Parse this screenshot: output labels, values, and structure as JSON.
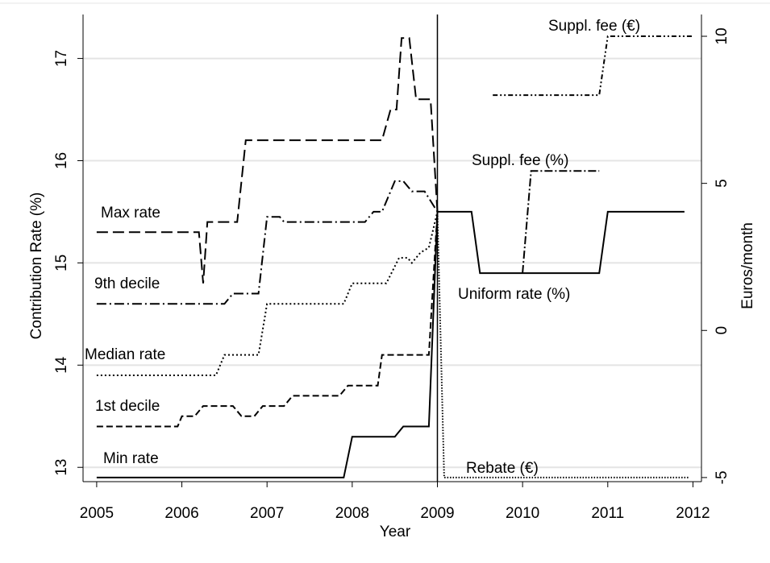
{
  "chart_data": {
    "type": "line",
    "xlabel": "Year",
    "ylabel": "Contribution Rate (%)",
    "y2label": "Euros/month",
    "xlim": [
      2004.84,
      2012.1
    ],
    "xticks": [
      2005,
      2006,
      2007,
      2008,
      2009,
      2010,
      2011,
      2012
    ],
    "ylim": [
      12.86,
      17.43
    ],
    "yticks": [
      13,
      14,
      15,
      16,
      17
    ],
    "y2lim": [
      -5.14,
      10.74
    ],
    "y2ticks": [
      -5,
      0,
      5,
      10
    ],
    "grid": true,
    "vline": 2009,
    "series": [
      {
        "name": "Max rate",
        "color": "#000000",
        "dash": "14 6",
        "x": [
          2005,
          2006.2,
          2006.25,
          2006.3,
          2006.65,
          2006.75,
          2008.35,
          2008.45,
          2008.52,
          2008.58,
          2008.67,
          2008.75,
          2008.92,
          2009
        ],
        "values": [
          15.3,
          15.3,
          14.8,
          15.4,
          15.4,
          16.2,
          16.2,
          16.5,
          16.5,
          17.2,
          17.2,
          16.6,
          16.6,
          15.5
        ]
      },
      {
        "name": "9th decile",
        "color": "#000000",
        "dash": "12 4 2 4",
        "x": [
          2005,
          2006.5,
          2006.6,
          2006.9,
          2007.0,
          2007.15,
          2007.2,
          2008.15,
          2008.25,
          2008.35,
          2008.5,
          2008.6,
          2008.7,
          2008.85,
          2009
        ],
        "values": [
          14.6,
          14.6,
          14.7,
          14.7,
          15.45,
          15.45,
          15.4,
          15.4,
          15.5,
          15.5,
          15.8,
          15.8,
          15.7,
          15.7,
          15.5
        ]
      },
      {
        "name": "Median rate",
        "color": "#000000",
        "dash": "2 3",
        "x": [
          2005,
          2006.4,
          2006.5,
          2006.9,
          2007.0,
          2007.9,
          2008.0,
          2008.4,
          2008.55,
          2008.65,
          2008.7,
          2008.8,
          2008.9,
          2009
        ],
        "values": [
          13.9,
          13.9,
          14.1,
          14.1,
          14.6,
          14.6,
          14.8,
          14.8,
          15.05,
          15.05,
          15.0,
          15.1,
          15.15,
          15.5
        ]
      },
      {
        "name": "1st decile",
        "color": "#000000",
        "dash": "8 4",
        "x": [
          2005,
          2005.95,
          2006.0,
          2006.15,
          2006.25,
          2006.6,
          2006.7,
          2006.85,
          2006.95,
          2007.2,
          2007.3,
          2007.85,
          2007.95,
          2008.3,
          2008.35,
          2008.9,
          2009
        ],
        "values": [
          13.4,
          13.4,
          13.5,
          13.5,
          13.6,
          13.6,
          13.5,
          13.5,
          13.6,
          13.6,
          13.7,
          13.7,
          13.8,
          13.8,
          14.1,
          14.1,
          15.5
        ]
      },
      {
        "name": "Min rate",
        "color": "#000000",
        "dash": "",
        "x": [
          2005,
          2007.9,
          2008.0,
          2008.5,
          2008.6,
          2008.9,
          2009
        ],
        "values": [
          12.9,
          12.9,
          13.3,
          13.3,
          13.4,
          13.4,
          15.5
        ]
      },
      {
        "name": "Uniform rate (%)",
        "color": "#000000",
        "dash": "",
        "x": [
          2009,
          2009.4,
          2009.5,
          2010.9,
          2011.0,
          2011.9
        ],
        "values": [
          15.5,
          15.5,
          14.9,
          14.9,
          15.5,
          15.5
        ]
      },
      {
        "name": "Suppl. fee (%)",
        "color": "#000000",
        "dash": "10 3 2 3",
        "x": [
          2010.0,
          2010.1,
          2010.9
        ],
        "values": [
          14.9,
          15.9,
          15.9
        ]
      },
      {
        "name": "Suppl. fee (€)",
        "color": "#000000",
        "dash": "6 3 2 3 2 3",
        "axis": "y2",
        "x": [
          2009.65,
          2010.9,
          2011.0,
          2012
        ],
        "values": [
          8,
          8,
          10,
          10
        ]
      },
      {
        "name": "Rebate (€)",
        "color": "#000000",
        "dash": "1.5 2",
        "axis": "y2",
        "x": [
          2009,
          2009.08,
          2011.95
        ],
        "values": [
          4,
          -5,
          -5
        ]
      }
    ]
  }
}
